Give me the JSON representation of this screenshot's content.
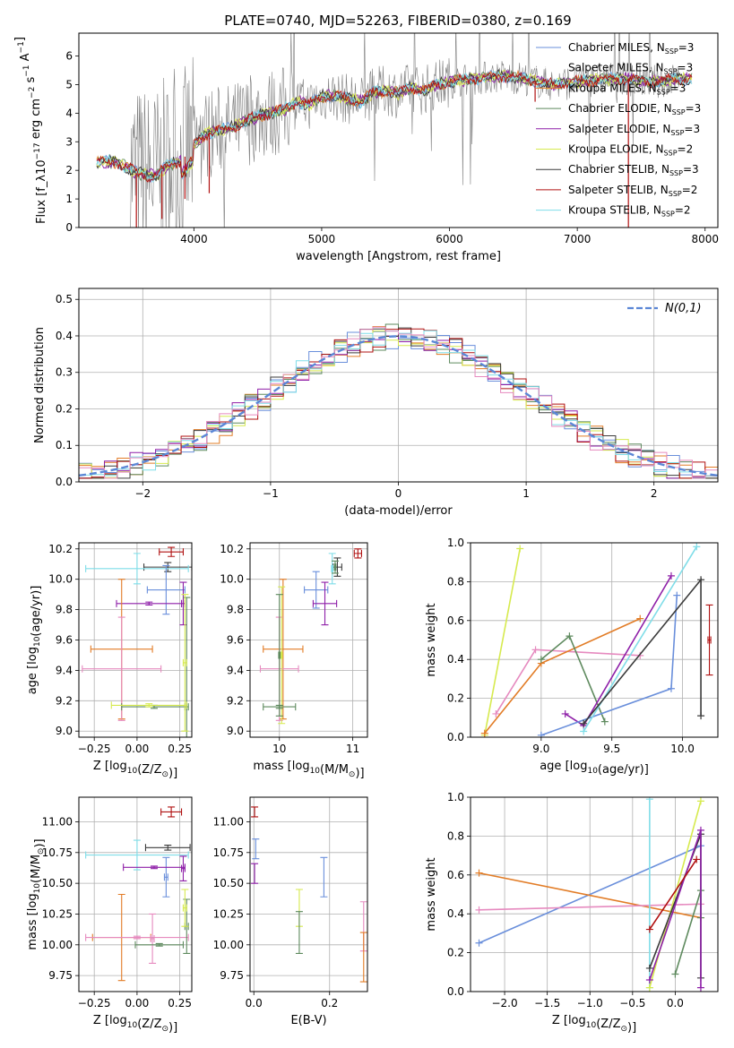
{
  "figure_title": "PLATE=0740, MJD=52263, FIBERID=0380, z=0.169",
  "colors": {
    "chabrier_miles": "#6a8fdb",
    "salpeter_miles": "#ffffff",
    "kroupa_miles": "#e27c26",
    "chabrier_elodie": "#5e8a5e",
    "salpeter_elodie": "#8e1fa8",
    "kroupa_elodie": "#d6ea4e",
    "chabrier_stelib": "#3b3b3b",
    "salpeter_stelib": "#b01010",
    "kroupa_stelib": "#7fdde8",
    "pink": "#e68abf",
    "data_grey": "#808080"
  },
  "chart_data": [
    {
      "id": "spectrum",
      "type": "line",
      "title": "PLATE=0740, MJD=52263, FIBERID=0380, z=0.169",
      "xlabel": "wavelength [Angstrom, rest frame]",
      "ylabel": "Flux [f_λ10^-17 erg cm^-2 s^-1 A^-1]",
      "xlim": [
        3100,
        8100
      ],
      "ylim": [
        0,
        6.8
      ],
      "xticks": [
        4000,
        5000,
        6000,
        7000,
        8000
      ],
      "yticks": [
        0,
        1,
        2,
        3,
        4,
        5,
        6
      ],
      "grid": false,
      "legend_position": "top-right",
      "legend": [
        {
          "label": "Chabrier MILES, N",
          "sub": "SSP",
          "suffix": "=3",
          "color": "#6a8fdb"
        },
        {
          "label": "Salpeter MILES, N",
          "sub": "SSP",
          "suffix": "=3",
          "color": "#ffffff"
        },
        {
          "label": "Kroupa MILES, N",
          "sub": "SSP",
          "suffix": "=3",
          "color": "#e27c26"
        },
        {
          "label": "Chabrier ELODIE, N",
          "sub": "SSP",
          "suffix": "=3",
          "color": "#5e8a5e"
        },
        {
          "label": "Salpeter ELODIE, N",
          "sub": "SSP",
          "suffix": "=3",
          "color": "#8e1fa8"
        },
        {
          "label": "Kroupa ELODIE, N",
          "sub": "SSP",
          "suffix": "=2",
          "color": "#d6ea4e"
        },
        {
          "label": "Chabrier STELIB, N",
          "sub": "SSP",
          "suffix": "=3",
          "color": "#3b3b3b"
        },
        {
          "label": "Salpeter STELIB, N",
          "sub": "SSP",
          "suffix": "=2",
          "color": "#b01010"
        },
        {
          "label": "Kroupa STELIB, N",
          "sub": "SSP",
          "suffix": "=2",
          "color": "#7fdde8"
        }
      ],
      "model_continuum": {
        "x": [
          3240,
          3400,
          3550,
          3700,
          3800,
          3900,
          4000,
          4100,
          4200,
          4300,
          4400,
          4500,
          4600,
          4700,
          4800,
          4900,
          5000,
          5100,
          5200,
          5300,
          5400,
          5500,
          5600,
          5700,
          5800,
          5900,
          6000,
          6200,
          6400,
          6600,
          6800,
          7000,
          7200,
          7400,
          7600,
          7800,
          7900
        ],
        "y": [
          2.3,
          2.3,
          1.9,
          1.8,
          2.2,
          2.3,
          2.9,
          3.3,
          3.4,
          3.5,
          3.7,
          3.9,
          4.0,
          4.1,
          4.4,
          4.3,
          4.6,
          4.6,
          4.5,
          4.4,
          4.7,
          4.8,
          4.7,
          4.9,
          4.8,
          5.0,
          5.1,
          5.2,
          5.3,
          5.2,
          5.0,
          5.1,
          5.2,
          5.2,
          5.1,
          5.2,
          5.2
        ]
      },
      "observed_spectrum_style": "noisy grey data spanning 3500-7800 Angstrom with strong noise below 4000 Angstrom"
    },
    {
      "id": "residuals",
      "type": "line",
      "xlabel": "(data-model)/error",
      "ylabel": "Normed distribution",
      "xlim": [
        -2.5,
        2.5
      ],
      "ylim": [
        0,
        0.53
      ],
      "xticks": [
        -2,
        -1,
        0,
        1,
        2
      ],
      "yticks": [
        0.0,
        0.1,
        0.2,
        0.3,
        0.4,
        0.5
      ],
      "grid": true,
      "legend_position": "top-right",
      "legend": [
        {
          "label": "N(0,1)",
          "style": "dashed",
          "color": "#5b87d6"
        }
      ],
      "gaussian": {
        "mean": 0,
        "sigma": 1
      },
      "histogram_bin_width": 0.1
    },
    {
      "id": "age_vs_Z",
      "type": "scatter",
      "xlabel": "Z [log10(Z/Z⊙)]",
      "ylabel": "age [log10(age/yr)]",
      "xlim": [
        -0.34,
        0.32
      ],
      "ylim": [
        8.96,
        10.24
      ],
      "xticks": [
        -0.25,
        0.0,
        0.25
      ],
      "yticks": [
        9.0,
        9.2,
        9.4,
        9.6,
        9.8,
        10.0,
        10.2
      ],
      "grid": true,
      "errorbars": [
        {
          "color": "#b01010",
          "x": 0.2,
          "xerr": 0.07,
          "y": 10.18,
          "yerr": 0.03
        },
        {
          "color": "#3b3b3b",
          "x": 0.18,
          "xerr": 0.14,
          "y": 10.08,
          "yerr": 0.03
        },
        {
          "color": "#7fdde8",
          "x": 0.0,
          "xerr": 0.3,
          "y": 10.07,
          "yerr": 0.1
        },
        {
          "color": "#6a8fdb",
          "x": 0.17,
          "xerr": 0.11,
          "y": 9.93,
          "yerr": 0.16
        },
        {
          "color": "#8e1fa8",
          "x": 0.07,
          "xerr": 0.19,
          "y": 9.84,
          "yerr": 0.01
        },
        {
          "color": "#8e1fa8",
          "x": 0.27,
          "xerr": 0.01,
          "y": 9.84,
          "yerr": 0.14
        },
        {
          "color": "#e27c26",
          "x": -0.09,
          "xerr": 0.18,
          "y": 9.54,
          "yerr": 0.46
        },
        {
          "color": "#e68abf",
          "x": -0.09,
          "xerr": 0.23,
          "y": 9.41,
          "yerr": 0.34
        },
        {
          "color": "#5e8a5e",
          "x": 0.1,
          "xerr": 0.19,
          "y": 9.16,
          "yerr": 0.01
        },
        {
          "color": "#5e8a5e",
          "x": 0.29,
          "xerr": 0.01,
          "y": 9.16,
          "yerr": 0.72
        },
        {
          "color": "#d6ea4e",
          "x": 0.07,
          "xerr": 0.22,
          "y": 9.17,
          "yerr": 0.01
        },
        {
          "color": "#d6ea4e",
          "x": 0.28,
          "xerr": 0.01,
          "y": 9.45,
          "yerr": 0.45
        }
      ]
    },
    {
      "id": "age_vs_mass",
      "type": "scatter",
      "xlabel": "mass [log10(M/M⊙)]",
      "ylabel": "",
      "xlim": [
        9.6,
        11.2
      ],
      "ylim": [
        8.96,
        10.24
      ],
      "xticks": [
        10,
        11
      ],
      "yticks": [
        9.0,
        9.2,
        9.4,
        9.6,
        9.8,
        10.0,
        10.2
      ],
      "grid": true,
      "errorbars": [
        {
          "color": "#b01010",
          "x": 11.07,
          "xerr": 0.05,
          "y": 10.17,
          "yerr": 0.03
        },
        {
          "color": "#3b3b3b",
          "x": 10.79,
          "xerr": 0.06,
          "y": 10.08,
          "yerr": 0.06
        },
        {
          "color": "#7fdde8",
          "x": 10.72,
          "xerr": 0.01,
          "y": 10.07,
          "yerr": 0.1
        },
        {
          "color": "#5e8a5e",
          "x": 10.76,
          "xerr": 0.01,
          "y": 10.08,
          "yerr": 0.04
        },
        {
          "color": "#6a8fdb",
          "x": 10.5,
          "xerr": 0.16,
          "y": 9.93,
          "yerr": 0.12
        },
        {
          "color": "#8e1fa8",
          "x": 10.62,
          "xerr": 0.16,
          "y": 9.84,
          "yerr": 0.14
        },
        {
          "color": "#e27c26",
          "x": 10.05,
          "xerr": 0.27,
          "y": 9.54,
          "yerr": 0.46
        },
        {
          "color": "#e68abf",
          "x": 10.0,
          "xerr": 0.26,
          "y": 9.41,
          "yerr": 0.34
        },
        {
          "color": "#d6ea4e",
          "x": 10.03,
          "xerr": 0.01,
          "y": 9.5,
          "yerr": 0.45
        },
        {
          "color": "#5e8a5e",
          "x": 10.0,
          "xerr": 0.22,
          "y": 9.16,
          "yerr": 0.01
        },
        {
          "color": "#5e8a5e",
          "x": 10.0,
          "xerr": 0.01,
          "y": 9.5,
          "yerr": 0.4
        }
      ]
    },
    {
      "id": "weight_vs_age",
      "type": "line",
      "xlabel": "age [log10(age/yr)]",
      "ylabel": "mass weight",
      "xlim": [
        8.5,
        10.25
      ],
      "ylim": [
        0,
        1.0
      ],
      "xticks": [
        9.0,
        9.5,
        10.0
      ],
      "yticks": [
        0.0,
        0.2,
        0.4,
        0.6,
        0.8,
        1.0
      ],
      "grid": true,
      "series": [
        {
          "color": "#d6ea4e",
          "x": [
            8.6,
            8.85
          ],
          "y": [
            0.01,
            0.97
          ]
        },
        {
          "color": "#e68abf",
          "x": [
            8.68,
            8.96,
            9.7
          ],
          "y": [
            0.12,
            0.45,
            0.42
          ]
        },
        {
          "color": "#e27c26",
          "x": [
            8.6,
            9.0,
            9.7
          ],
          "y": [
            0.02,
            0.38,
            0.61
          ]
        },
        {
          "color": "#5e8a5e",
          "x": [
            9.0,
            9.2,
            9.45
          ],
          "y": [
            0.4,
            0.52,
            0.08
          ]
        },
        {
          "color": "#8e1fa8",
          "x": [
            9.17,
            9.3,
            9.92
          ],
          "y": [
            0.12,
            0.06,
            0.83
          ]
        },
        {
          "color": "#6a8fdb",
          "x": [
            9.0,
            9.92,
            9.96
          ],
          "y": [
            0.01,
            0.25,
            0.73
          ]
        },
        {
          "color": "#7fdde8",
          "x": [
            9.3,
            10.1
          ],
          "y": [
            0.03,
            0.98
          ]
        },
        {
          "color": "#3b3b3b",
          "x": [
            9.3,
            10.13,
            10.13
          ],
          "y": [
            0.07,
            0.81,
            0.11
          ]
        }
      ],
      "errorbars": [
        {
          "color": "#b01010",
          "x": 10.19,
          "xerr": 0.01,
          "y": 0.5,
          "yerr": 0.18
        }
      ]
    },
    {
      "id": "mass_vs_Z",
      "type": "scatter",
      "xlabel": "Z [log10(Z/Z⊙)]",
      "ylabel": "mass [log10(M/M⊙)]",
      "xlim": [
        -0.34,
        0.32
      ],
      "ylim": [
        9.62,
        11.2
      ],
      "xticks": [
        -0.25,
        0.0,
        0.25
      ],
      "yticks": [
        9.75,
        10.0,
        10.25,
        10.5,
        10.75,
        11.0
      ],
      "grid": true,
      "errorbars": [
        {
          "color": "#b01010",
          "x": 0.2,
          "xerr": 0.06,
          "y": 11.08,
          "yerr": 0.04
        },
        {
          "color": "#3b3b3b",
          "x": 0.18,
          "xerr": 0.13,
          "y": 10.79,
          "yerr": 0.02
        },
        {
          "color": "#7fdde8",
          "x": 0.0,
          "xerr": 0.3,
          "y": 10.73,
          "yerr": 0.12
        },
        {
          "color": "#6a8fdb",
          "x": 0.17,
          "xerr": 0.01,
          "y": 10.55,
          "yerr": 0.16
        },
        {
          "color": "#8e1fa8",
          "x": 0.1,
          "xerr": 0.18,
          "y": 10.63,
          "yerr": 0.01
        },
        {
          "color": "#8e1fa8",
          "x": 0.27,
          "xerr": 0.01,
          "y": 10.62,
          "yerr": 0.1
        },
        {
          "color": "#e27c26",
          "x": -0.09,
          "xerr": 0.17,
          "y": 10.06,
          "yerr": 0.35
        },
        {
          "color": "#e68abf",
          "x": 0.0,
          "xerr": 0.3,
          "y": 10.06,
          "yerr": 0.01
        },
        {
          "color": "#e68abf",
          "x": 0.09,
          "xerr": 0.01,
          "y": 10.05,
          "yerr": 0.2
        },
        {
          "color": "#5e8a5e",
          "x": 0.13,
          "xerr": 0.14,
          "y": 10.0,
          "yerr": 0.01
        },
        {
          "color": "#5e8a5e",
          "x": 0.29,
          "xerr": 0.01,
          "y": 10.15,
          "yerr": 0.22
        },
        {
          "color": "#d6ea4e",
          "x": 0.28,
          "xerr": 0.01,
          "y": 10.3,
          "yerr": 0.15
        }
      ]
    },
    {
      "id": "mass_vs_EBV",
      "type": "scatter",
      "xlabel": "E(B-V)",
      "ylabel": "",
      "xlim": [
        -0.01,
        0.3
      ],
      "ylim": [
        9.62,
        11.2
      ],
      "xticks": [
        0.0,
        0.2
      ],
      "yticks": [
        9.75,
        10.0,
        10.25,
        10.5,
        10.75,
        11.0
      ],
      "grid": true,
      "errorbars": [
        {
          "color": "#b01010",
          "x": 0.002,
          "xerr": 0.001,
          "y": 11.08,
          "yerr": 0.04
        },
        {
          "color": "#6a8fdb",
          "x": 0.005,
          "xerr": 0.001,
          "y": 10.78,
          "yerr": 0.08
        },
        {
          "color": "#8e1fa8",
          "x": 0.002,
          "xerr": 0.001,
          "y": 10.58,
          "yerr": 0.08
        },
        {
          "color": "#6a8fdb",
          "x": 0.185,
          "xerr": 0.001,
          "y": 10.55,
          "yerr": 0.16
        },
        {
          "color": "#d6ea4e",
          "x": 0.12,
          "xerr": 0.001,
          "y": 10.3,
          "yerr": 0.15
        },
        {
          "color": "#5e8a5e",
          "x": 0.12,
          "xerr": 0.001,
          "y": 10.1,
          "yerr": 0.17
        },
        {
          "color": "#e68abf",
          "x": 0.29,
          "xerr": 0.001,
          "y": 10.15,
          "yerr": 0.2
        },
        {
          "color": "#e27c26",
          "x": 0.29,
          "xerr": 0.001,
          "y": 9.9,
          "yerr": 0.2
        }
      ]
    },
    {
      "id": "weight_vs_Z",
      "type": "line",
      "xlabel": "Z [log10(Z/Z⊙)]",
      "ylabel": "mass weight",
      "xlim": [
        -2.4,
        0.5
      ],
      "ylim": [
        0,
        1.0
      ],
      "xticks": [
        -2.0,
        -1.5,
        -1.0,
        -0.5,
        0.0
      ],
      "yticks": [
        0.0,
        0.2,
        0.4,
        0.6,
        0.8,
        1.0
      ],
      "grid": true,
      "series": [
        {
          "color": "#6a8fdb",
          "x": [
            -2.3,
            0.3
          ],
          "y": [
            0.25,
            0.75
          ]
        },
        {
          "color": "#e27c26",
          "x": [
            -2.3,
            0.3
          ],
          "y": [
            0.61,
            0.38
          ]
        },
        {
          "color": "#e68abf",
          "x": [
            -2.3,
            0.3
          ],
          "y": [
            0.42,
            0.45
          ]
        },
        {
          "color": "#7fdde8",
          "x": [
            -0.3,
            -0.3
          ],
          "y": [
            0.02,
            0.99
          ]
        },
        {
          "color": "#d6ea4e",
          "x": [
            -0.3,
            0.3
          ],
          "y": [
            0.02,
            0.98
          ]
        },
        {
          "color": "#3b3b3b",
          "x": [
            -0.3,
            0.3,
            0.3
          ],
          "y": [
            0.12,
            0.81,
            0.07
          ]
        },
        {
          "color": "#5e8a5e",
          "x": [
            0.0,
            0.3,
            0.3
          ],
          "y": [
            0.09,
            0.52,
            0.38
          ]
        },
        {
          "color": "#8e1fa8",
          "x": [
            -0.3,
            0.3,
            0.3
          ],
          "y": [
            0.06,
            0.83,
            0.02
          ]
        },
        {
          "color": "#b01010",
          "x": [
            -0.3,
            0.25
          ],
          "y": [
            0.32,
            0.68
          ]
        }
      ]
    }
  ]
}
